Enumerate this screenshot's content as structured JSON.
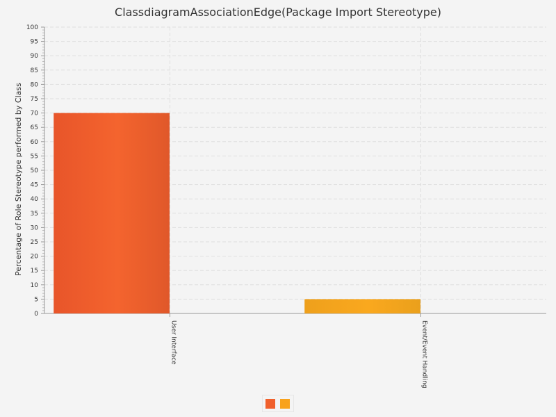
{
  "chart_data": {
    "type": "bar",
    "title": "ClassdiagramAssociationEdge(Package Import Stereotype)",
    "ylabel": "Percentage of Role Stereotype performed by Class",
    "xlabel": "",
    "ylim": [
      0,
      100
    ],
    "ytick_step": 5,
    "y_ticks": [
      "0",
      "5",
      "10",
      "15",
      "20",
      "25",
      "30",
      "35",
      "40",
      "45",
      "50",
      "55",
      "60",
      "65",
      "70",
      "75",
      "80",
      "85",
      "90",
      "95",
      "100"
    ],
    "grid": true,
    "categories": [
      "User Interface",
      "Event/Event Handling"
    ],
    "values": [
      70,
      5
    ],
    "colors": [
      "#f0602c",
      "#f8a21c"
    ],
    "legend_position": "bottom"
  }
}
